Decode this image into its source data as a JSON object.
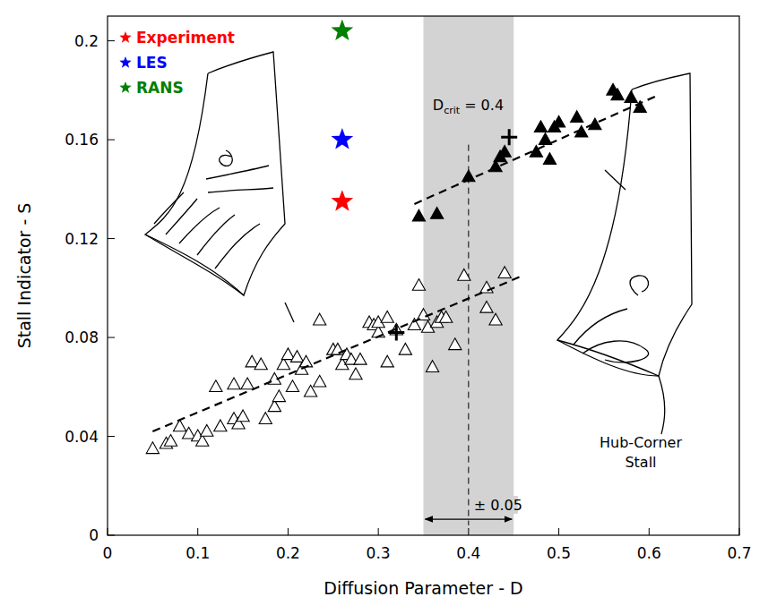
{
  "chart_data": {
    "type": "scatter",
    "xlabel": "Diffusion Parameter - D",
    "ylabel": "Stall Indicator - S",
    "xlim": [
      0,
      0.7
    ],
    "xticks": [
      0,
      0.1,
      0.2,
      0.3,
      0.4,
      0.5,
      0.6,
      0.7
    ],
    "ylim": [
      0,
      0.21
    ],
    "yticks": [
      0,
      0.04,
      0.08,
      0.12,
      0.16,
      0.2
    ],
    "legend": "top-left",
    "series": [
      {
        "color": "#000000",
        "marker": "triangle-open",
        "x": [
          0.05,
          0.065,
          0.07,
          0.08,
          0.09,
          0.1,
          0.105,
          0.11,
          0.12,
          0.125,
          0.14,
          0.145,
          0.15,
          0.14,
          0.155,
          0.16,
          0.17,
          0.175,
          0.185,
          0.185,
          0.19,
          0.195,
          0.2,
          0.205,
          0.21,
          0.215,
          0.22,
          0.225,
          0.235,
          0.235,
          0.25,
          0.255,
          0.26,
          0.265,
          0.27,
          0.275,
          0.28,
          0.29,
          0.295,
          0.3,
          0.3,
          0.31,
          0.31,
          0.32,
          0.33,
          0.34,
          0.345,
          0.35,
          0.355,
          0.36,
          0.365,
          0.37,
          0.375,
          0.385,
          0.395,
          0.42,
          0.42,
          0.43,
          0.44
        ],
        "values": [
          0.035,
          0.037,
          0.038,
          0.044,
          0.041,
          0.04,
          0.038,
          0.042,
          0.06,
          0.044,
          0.047,
          0.045,
          0.048,
          0.061,
          0.061,
          0.07,
          0.069,
          0.047,
          0.052,
          0.063,
          0.056,
          0.069,
          0.073,
          0.06,
          0.072,
          0.067,
          0.07,
          0.058,
          0.087,
          0.062,
          0.075,
          0.075,
          0.069,
          0.073,
          0.071,
          0.065,
          0.071,
          0.086,
          0.085,
          0.082,
          0.086,
          0.07,
          0.088,
          0.083,
          0.075,
          0.085,
          0.101,
          0.089,
          0.084,
          0.068,
          0.086,
          0.088,
          0.088,
          0.077,
          0.105,
          0.092,
          0.1,
          0.087,
          0.106
        ]
      },
      {
        "color": "#000000",
        "marker": "triangle-filled",
        "x": [
          0.345,
          0.365,
          0.4,
          0.43,
          0.435,
          0.44,
          0.475,
          0.48,
          0.485,
          0.49,
          0.495,
          0.5,
          0.52,
          0.525,
          0.54,
          0.56,
          0.565,
          0.58,
          0.59
        ],
        "values": [
          0.129,
          0.13,
          0.145,
          0.149,
          0.153,
          0.155,
          0.155,
          0.165,
          0.16,
          0.152,
          0.165,
          0.167,
          0.169,
          0.163,
          0.166,
          0.18,
          0.178,
          0.177,
          0.173
        ]
      },
      {
        "color": "#000000",
        "marker": "cross",
        "x": [
          0.32,
          0.445
        ],
        "values": [
          0.082,
          0.161
        ]
      },
      {
        "type": "line",
        "color": "#000000",
        "line_style": "dashed",
        "x": [
          0.05,
          0.46
        ],
        "values": [
          0.042,
          0.105
        ]
      },
      {
        "type": "line",
        "color": "#000000",
        "line_style": "dashed",
        "x": [
          0.34,
          0.61
        ],
        "values": [
          0.134,
          0.178
        ]
      },
      {
        "name": "Experiment",
        "color": "#ff0000",
        "marker": "star",
        "x": [
          0.26
        ],
        "values": [
          0.135
        ]
      },
      {
        "name": "LES",
        "color": "#0000ff",
        "marker": "star",
        "x": [
          0.26
        ],
        "values": [
          0.16
        ]
      },
      {
        "name": "RANS",
        "color": "#008000",
        "marker": "star",
        "x": [
          0.26
        ],
        "values": [
          0.204
        ]
      }
    ],
    "critical": {
      "x": 0.4,
      "symbol": "D",
      "subscript": "crit",
      "text": "= 0.4"
    },
    "band": {
      "x": [
        0.35,
        0.45
      ],
      "label": "± 0.05"
    },
    "annotations": [
      {
        "text": "Hub-Corner Stall"
      }
    ]
  }
}
